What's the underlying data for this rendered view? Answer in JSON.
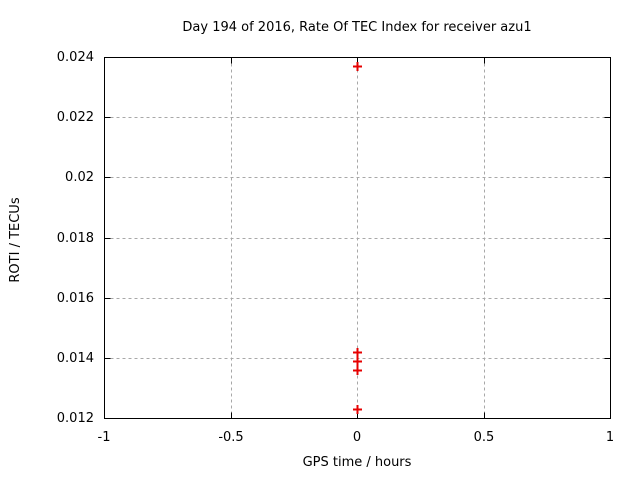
{
  "chart_data": {
    "type": "scatter",
    "title": "Day 194 of 2016, Rate Of TEC Index for receiver azu1",
    "xlabel": "GPS time / hours",
    "ylabel": "ROTI / TECUs",
    "xlim": [
      -1,
      1
    ],
    "ylim": [
      0.012,
      0.024
    ],
    "xticks": [
      {
        "value": -1,
        "label": "-1"
      },
      {
        "value": -0.5,
        "label": "-0.5"
      },
      {
        "value": 0,
        "label": "0"
      },
      {
        "value": 0.5,
        "label": "0.5"
      },
      {
        "value": 1,
        "label": "1"
      }
    ],
    "yticks": [
      {
        "value": 0.012,
        "label": "0.012"
      },
      {
        "value": 0.014,
        "label": "0.014"
      },
      {
        "value": 0.016,
        "label": "0.016"
      },
      {
        "value": 0.018,
        "label": "0.018"
      },
      {
        "value": 0.02,
        "label": "0.02"
      },
      {
        "value": 0.022,
        "label": "0.022"
      },
      {
        "value": 0.024,
        "label": "0.024"
      }
    ],
    "grid": true,
    "grid_style": "dashed",
    "legend": "none",
    "series": [
      {
        "name": "ROTI",
        "marker": "plus",
        "color": "#e60000",
        "points": [
          {
            "x": 0,
            "y": 0.0237
          },
          {
            "x": 0,
            "y": 0.0142
          },
          {
            "x": 0,
            "y": 0.0139
          },
          {
            "x": 0,
            "y": 0.0136
          },
          {
            "x": 0,
            "y": 0.0123
          }
        ]
      }
    ],
    "colors": {
      "background": "#ffffff",
      "axis": "#000000",
      "grid": "#a8a8a8",
      "text": "#000000"
    }
  }
}
